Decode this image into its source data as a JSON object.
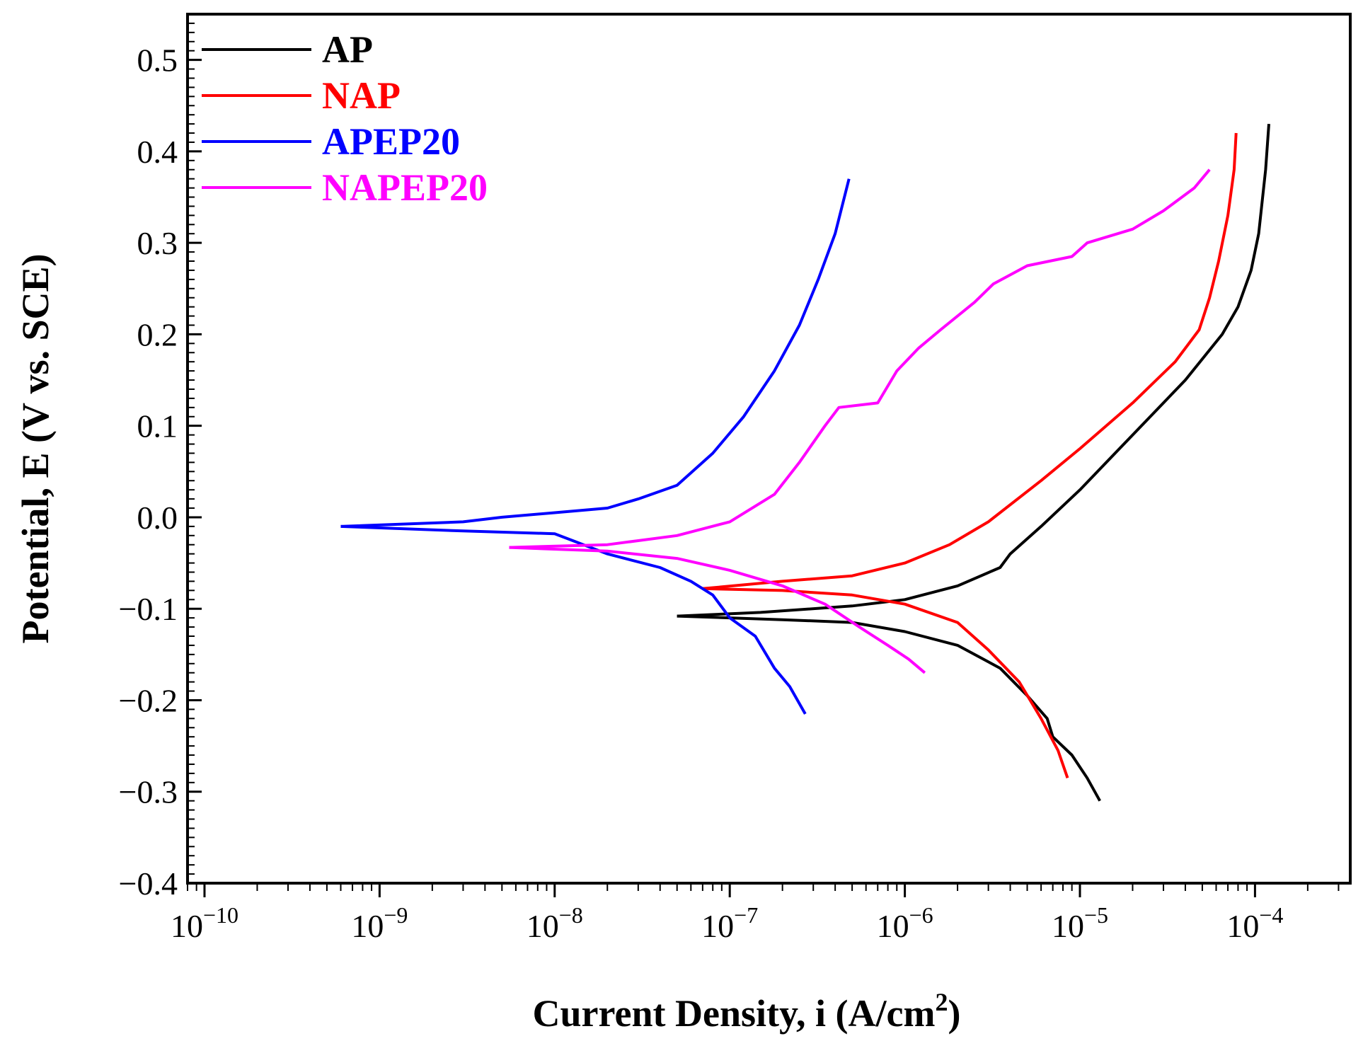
{
  "chart_data": {
    "type": "line",
    "title": "",
    "xlabel": "Current Density, i (A/cm",
    "xlabel_superscript": "2",
    "xlabel_suffix": ")",
    "ylabel": "Potential, E (V vs. SCE)",
    "xscale": "log",
    "xlim": [
      8e-11,
      0.00035
    ],
    "ylim": [
      -0.4,
      0.55
    ],
    "x_ticks": [
      {
        "base": "10",
        "exp": "-10",
        "value": 1e-10
      },
      {
        "base": "10",
        "exp": "-9",
        "value": 1e-09
      },
      {
        "base": "10",
        "exp": "-8",
        "value": 1e-08
      },
      {
        "base": "10",
        "exp": "-7",
        "value": 1e-07
      },
      {
        "base": "10",
        "exp": "-6",
        "value": 1e-06
      },
      {
        "base": "10",
        "exp": "-5",
        "value": 1e-05
      },
      {
        "base": "10",
        "exp": "-4",
        "value": 0.0001
      }
    ],
    "y_ticks": [
      {
        "label": "−0.4",
        "value": -0.4
      },
      {
        "label": "−0.3",
        "value": -0.3
      },
      {
        "label": "−0.2",
        "value": -0.2
      },
      {
        "label": "−0.1",
        "value": -0.1
      },
      {
        "label": "0.0",
        "value": 0.0
      },
      {
        "label": "0.1",
        "value": 0.1
      },
      {
        "label": "0.2",
        "value": 0.2
      },
      {
        "label": "0.3",
        "value": 0.3
      },
      {
        "label": "0.4",
        "value": 0.4
      },
      {
        "label": "0.5",
        "value": 0.5
      }
    ],
    "legend_position": "top-left",
    "series": [
      {
        "name": "AP",
        "color": "#000000",
        "x": [
          5e-08,
          1.5e-07,
          5e-07,
          1e-06,
          2e-06,
          3.5e-06,
          4e-06,
          6e-06,
          1e-05,
          2e-05,
          4e-05,
          6.5e-05,
          8e-05,
          9.5e-05,
          0.000105,
          0.000115,
          0.00012
        ],
        "y": [
          -0.108,
          -0.104,
          -0.097,
          -0.09,
          -0.075,
          -0.055,
          -0.04,
          -0.01,
          0.03,
          0.09,
          0.15,
          0.2,
          0.23,
          0.27,
          0.31,
          0.38,
          0.43
        ],
        "x2": [
          5e-08,
          2e-07,
          5e-07,
          1e-06,
          2e-06,
          3.5e-06,
          5e-06,
          6.5e-06,
          7e-06,
          9e-06,
          1.1e-05,
          1.3e-05
        ],
        "y2": [
          -0.108,
          -0.112,
          -0.115,
          -0.125,
          -0.14,
          -0.165,
          -0.195,
          -0.22,
          -0.24,
          -0.26,
          -0.285,
          -0.31
        ]
      },
      {
        "name": "NAP",
        "color": "#ff0000",
        "x": [
          7e-08,
          2e-07,
          5e-07,
          1e-06,
          1.8e-06,
          3e-06,
          6e-06,
          1e-05,
          2e-05,
          3.5e-05,
          4.8e-05,
          5.5e-05,
          6.2e-05,
          7e-05,
          7.6e-05,
          7.8e-05
        ],
        "y": [
          -0.078,
          -0.07,
          -0.064,
          -0.05,
          -0.03,
          -0.005,
          0.04,
          0.075,
          0.125,
          0.17,
          0.205,
          0.24,
          0.28,
          0.33,
          0.38,
          0.42
        ],
        "x2": [
          7e-08,
          2e-07,
          5e-07,
          1e-06,
          2e-06,
          3e-06,
          4.5e-06,
          6e-06,
          7.5e-06,
          8.5e-06
        ],
        "y2": [
          -0.078,
          -0.08,
          -0.085,
          -0.095,
          -0.115,
          -0.145,
          -0.18,
          -0.22,
          -0.255,
          -0.285
        ]
      },
      {
        "name": "APEP20",
        "color": "#0000ff",
        "x": [
          6e-10,
          3e-09,
          5e-09,
          1e-08,
          2e-08,
          3e-08,
          5e-08,
          8e-08,
          1.2e-07,
          1.8e-07,
          2.5e-07,
          3.2e-07,
          4e-07,
          4.8e-07
        ],
        "y": [
          -0.01,
          -0.005,
          0.0,
          0.005,
          0.01,
          0.02,
          0.035,
          0.07,
          0.11,
          0.16,
          0.21,
          0.26,
          0.31,
          0.37
        ],
        "x2": [
          6e-10,
          3e-09,
          1e-08,
          2e-08,
          4e-08,
          6e-08,
          8e-08,
          1e-07,
          1.4e-07,
          1.8e-07,
          2.2e-07,
          2.7e-07
        ],
        "y2": [
          -0.01,
          -0.015,
          -0.018,
          -0.04,
          -0.055,
          -0.07,
          -0.085,
          -0.11,
          -0.13,
          -0.165,
          -0.185,
          -0.215
        ]
      },
      {
        "name": "NAPEP20",
        "color": "#ff00ff",
        "x": [
          5.5e-09,
          2e-08,
          5e-08,
          1e-07,
          1.8e-07,
          2.5e-07,
          3.5e-07,
          4.2e-07,
          7e-07,
          9e-07,
          1.2e-06,
          1.6e-06,
          2.5e-06,
          3.2e-06,
          5e-06,
          9e-06,
          1.1e-05,
          2e-05,
          3e-05,
          4.5e-05,
          5.5e-05
        ],
        "y": [
          -0.033,
          -0.03,
          -0.02,
          -0.005,
          0.025,
          0.06,
          0.1,
          0.12,
          0.125,
          0.16,
          0.185,
          0.205,
          0.235,
          0.255,
          0.275,
          0.285,
          0.3,
          0.315,
          0.335,
          0.36,
          0.38
        ],
        "x2": [
          5.5e-09,
          2e-08,
          5e-08,
          1e-07,
          2e-07,
          3.5e-07,
          5.5e-07,
          8e-07,
          1.05e-06,
          1.3e-06
        ],
        "y2": [
          -0.033,
          -0.037,
          -0.045,
          -0.058,
          -0.075,
          -0.095,
          -0.12,
          -0.14,
          -0.155,
          -0.17
        ]
      }
    ]
  }
}
